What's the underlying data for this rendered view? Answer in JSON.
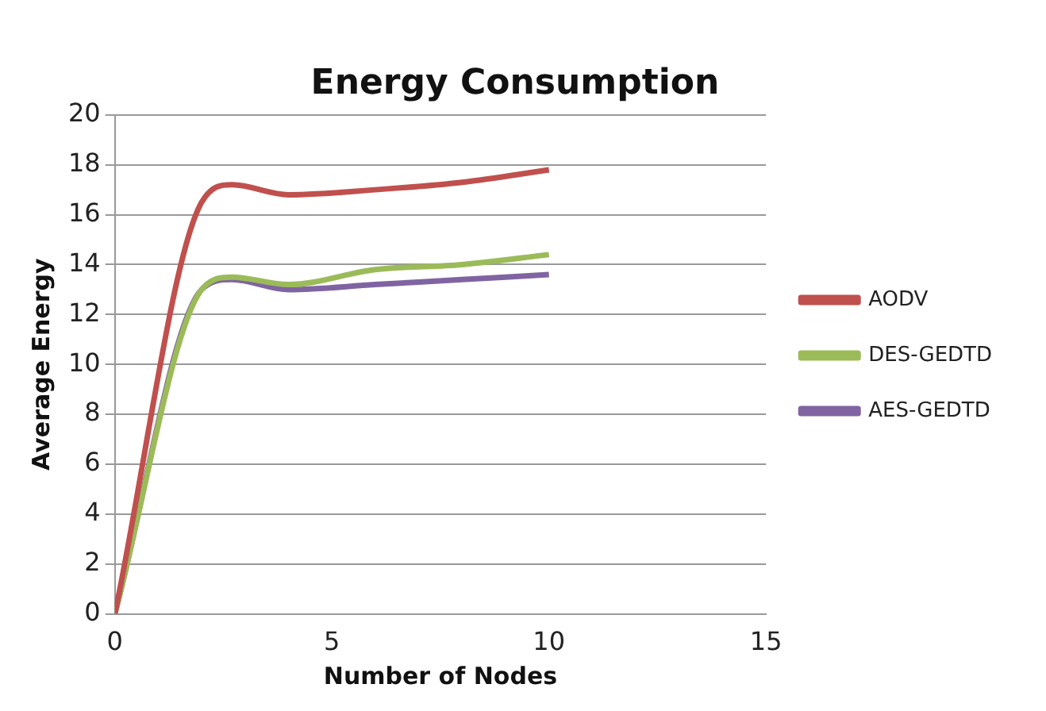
{
  "chart_data": {
    "type": "line",
    "title": "Energy Consumption",
    "xlabel": "Number of Nodes",
    "ylabel": "Average Energy",
    "xlim": [
      0,
      15
    ],
    "xticks": [
      0,
      5,
      10,
      15
    ],
    "ylim": [
      0,
      20
    ],
    "yticks": [
      0,
      2,
      4,
      6,
      8,
      10,
      12,
      14,
      16,
      18,
      20
    ],
    "grid": "y",
    "legend": "right",
    "marker": "none",
    "line_style": "solid",
    "series": [
      {
        "name": "AODV",
        "color": "#c0504d",
        "x": [
          0,
          2,
          2.7,
          4,
          6,
          8,
          10
        ],
        "values": [
          0,
          16.5,
          17.2,
          16.8,
          17.0,
          17.3,
          17.8
        ]
      },
      {
        "name": "DES-GEDTD",
        "color": "#9bbb59",
        "x": [
          0,
          2,
          2.7,
          4,
          6,
          8,
          10
        ],
        "values": [
          0,
          13.0,
          13.5,
          13.2,
          13.8,
          14.0,
          14.4
        ]
      },
      {
        "name": "AES-GEDTD",
        "color": "#8064a2",
        "x": [
          0,
          2,
          2.7,
          4,
          6,
          8,
          10
        ],
        "values": [
          0,
          13.0,
          13.4,
          13.0,
          13.2,
          13.4,
          13.6
        ]
      }
    ]
  }
}
